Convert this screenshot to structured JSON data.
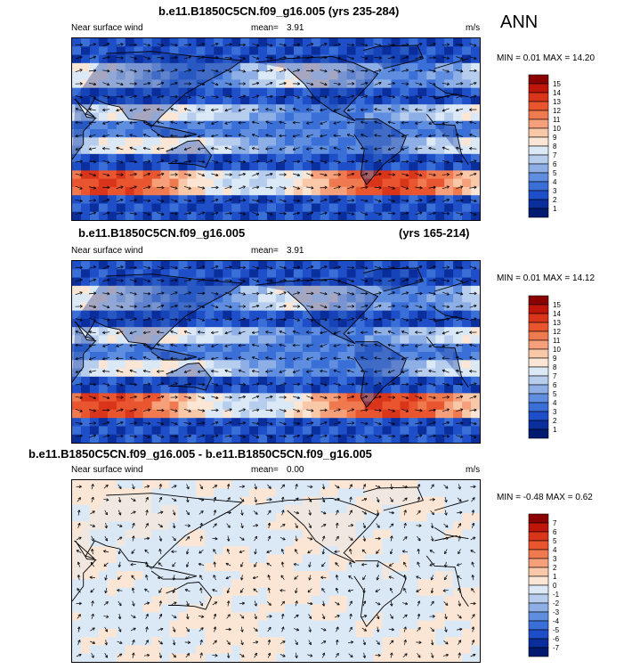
{
  "corner_label": "ANN",
  "panels": [
    {
      "title": "b.e11.B1850C5CN.f09_g16.005 (yrs 235-284)",
      "title_right": "",
      "variable": "Near surface wind",
      "mean_label": "mean=",
      "mean_value": "3.91",
      "units": "m/s",
      "minmax": "MIN =  0.01 MAX =  14.20",
      "levels": [
        "15",
        "14",
        "13",
        "12",
        "11",
        "10",
        "9",
        "8",
        "7",
        "6",
        "5",
        "4",
        "3",
        "2",
        "1"
      ],
      "colors": [
        "#8b0000",
        "#c0150a",
        "#d9351a",
        "#e8552e",
        "#f07a4f",
        "#f5a07a",
        "#f9c8a9",
        "#fbe6d5",
        "#dbe8f6",
        "#b6cdee",
        "#8dafe6",
        "#5f8ee0",
        "#3a6fd8",
        "#1f4fc8",
        "#0a2f9c",
        "#001a70"
      ]
    },
    {
      "title": "b.e11.B1850C5CN.f09_g16.005",
      "title_right": "(yrs 165-214)",
      "variable": "Near surface wind",
      "mean_label": "mean=",
      "mean_value": "3.91",
      "units": "",
      "minmax": "MIN =  0.01 MAX =  14.12",
      "levels": [
        "15",
        "14",
        "13",
        "12",
        "11",
        "10",
        "9",
        "8",
        "7",
        "6",
        "5",
        "4",
        "3",
        "2",
        "1"
      ],
      "colors": [
        "#8b0000",
        "#c0150a",
        "#d9351a",
        "#e8552e",
        "#f07a4f",
        "#f5a07a",
        "#f9c8a9",
        "#fbe6d5",
        "#dbe8f6",
        "#b6cdee",
        "#8dafe6",
        "#5f8ee0",
        "#3a6fd8",
        "#1f4fc8",
        "#0a2f9c",
        "#001a70"
      ]
    },
    {
      "title": "b.e11.B1850C5CN.f09_g16.005 - b.e11.B1850C5CN.f09_g16.005",
      "title_right": "",
      "variable": "Near surface wind",
      "mean_label": "mean=",
      "mean_value": "0.00",
      "units": "m/s",
      "minmax": "MIN = -0.48 MAX =   0.62",
      "levels": [
        "7",
        "6",
        "5",
        "4",
        "3",
        "2",
        "1",
        "0",
        "-1",
        "-2",
        "-3",
        "-4",
        "-5",
        "-6",
        "-7"
      ],
      "colors": [
        "#8b0000",
        "#c0150a",
        "#d9351a",
        "#e8552e",
        "#f07a4f",
        "#f5a07a",
        "#f9c8a9",
        "#fbe6d5",
        "#dbe8f6",
        "#b6cdee",
        "#8dafe6",
        "#5f8ee0",
        "#3a6fd8",
        "#1f4fc8",
        "#0a2f9c",
        "#001a70"
      ]
    }
  ],
  "chart_data": [
    {
      "type": "heatmap",
      "title": "b.e11.B1850C5CN.f09_g16.005 (yrs 235-284)",
      "variable": "Near surface wind",
      "units": "m/s",
      "mean": 3.91,
      "min": 0.01,
      "max": 14.2,
      "contour_levels": [
        1,
        2,
        3,
        4,
        5,
        6,
        7,
        8,
        9,
        10,
        11,
        12,
        13,
        14,
        15
      ]
    },
    {
      "type": "heatmap",
      "title": "b.e11.B1850C5CN.f09_g16.005 (yrs 165-214)",
      "variable": "Near surface wind",
      "mean": 3.91,
      "min": 0.01,
      "max": 14.12,
      "contour_levels": [
        1,
        2,
        3,
        4,
        5,
        6,
        7,
        8,
        9,
        10,
        11,
        12,
        13,
        14,
        15
      ]
    },
    {
      "type": "heatmap",
      "title": "b.e11.B1850C5CN.f09_g16.005 - b.e11.B1850C5CN.f09_g16.005",
      "variable": "Near surface wind",
      "units": "m/s",
      "mean": 0.0,
      "min": -0.48,
      "max": 0.62,
      "contour_levels": [
        -7,
        -6,
        -5,
        -4,
        -3,
        -2,
        -1,
        0,
        1,
        2,
        3,
        4,
        5,
        6,
        7
      ]
    }
  ]
}
